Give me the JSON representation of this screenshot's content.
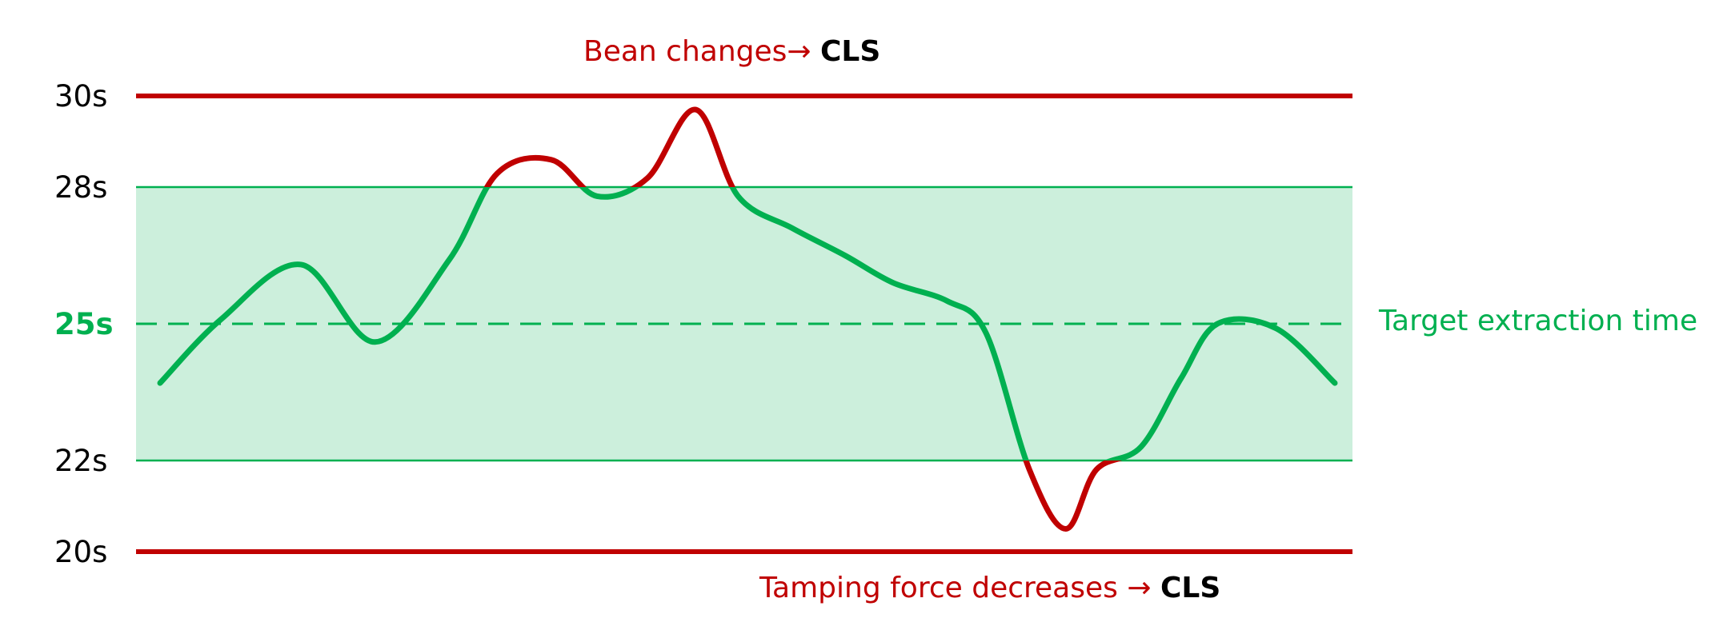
{
  "chart_data": {
    "type": "line",
    "title": "",
    "xlabel": "",
    "ylabel": "",
    "ylim": [
      19.4,
      31
    ],
    "y_axis_ticks": [
      "30s",
      "28s",
      "25s",
      "22s",
      "20s"
    ],
    "upper_control_limit": 30,
    "lower_control_limit": 20,
    "target_band": [
      22,
      28
    ],
    "target_value": 25,
    "target_label": "Target extraction time",
    "annotations": {
      "upper": {
        "text": "Bean changes→ ",
        "action": "CLS"
      },
      "lower": {
        "text": "Tamping force decreases → ",
        "action": "CLS"
      }
    },
    "series": [
      {
        "x": [
          0,
          5.2,
          12.0,
          18.3,
          24.6,
          28.7,
          33.3,
          37.2,
          41.5,
          45.6,
          49.2,
          53.8,
          58.3,
          62.4,
          67.0,
          70.3,
          74.0,
          77.1,
          79.7,
          83.5,
          86.9,
          90.0,
          95.0,
          100.0
        ],
        "y": [
          23.7,
          25.1,
          26.3,
          24.6,
          26.4,
          28.3,
          28.6,
          27.8,
          28.2,
          29.7,
          27.8,
          27.1,
          26.5,
          25.9,
          25.5,
          24.8,
          21.8,
          20.5,
          21.8,
          22.3,
          23.8,
          25.0,
          24.9,
          23.7
        ],
        "in_band_color": "#00b050",
        "out_of_band_color": "#c00000"
      }
    ],
    "colors": {
      "limit_line": "#c00000",
      "target_band_fill": "#ccefdc",
      "target_band_border": "#00b050",
      "target_line": "#00b050",
      "annotation_text": "#c00000",
      "action_text": "#000000"
    }
  }
}
